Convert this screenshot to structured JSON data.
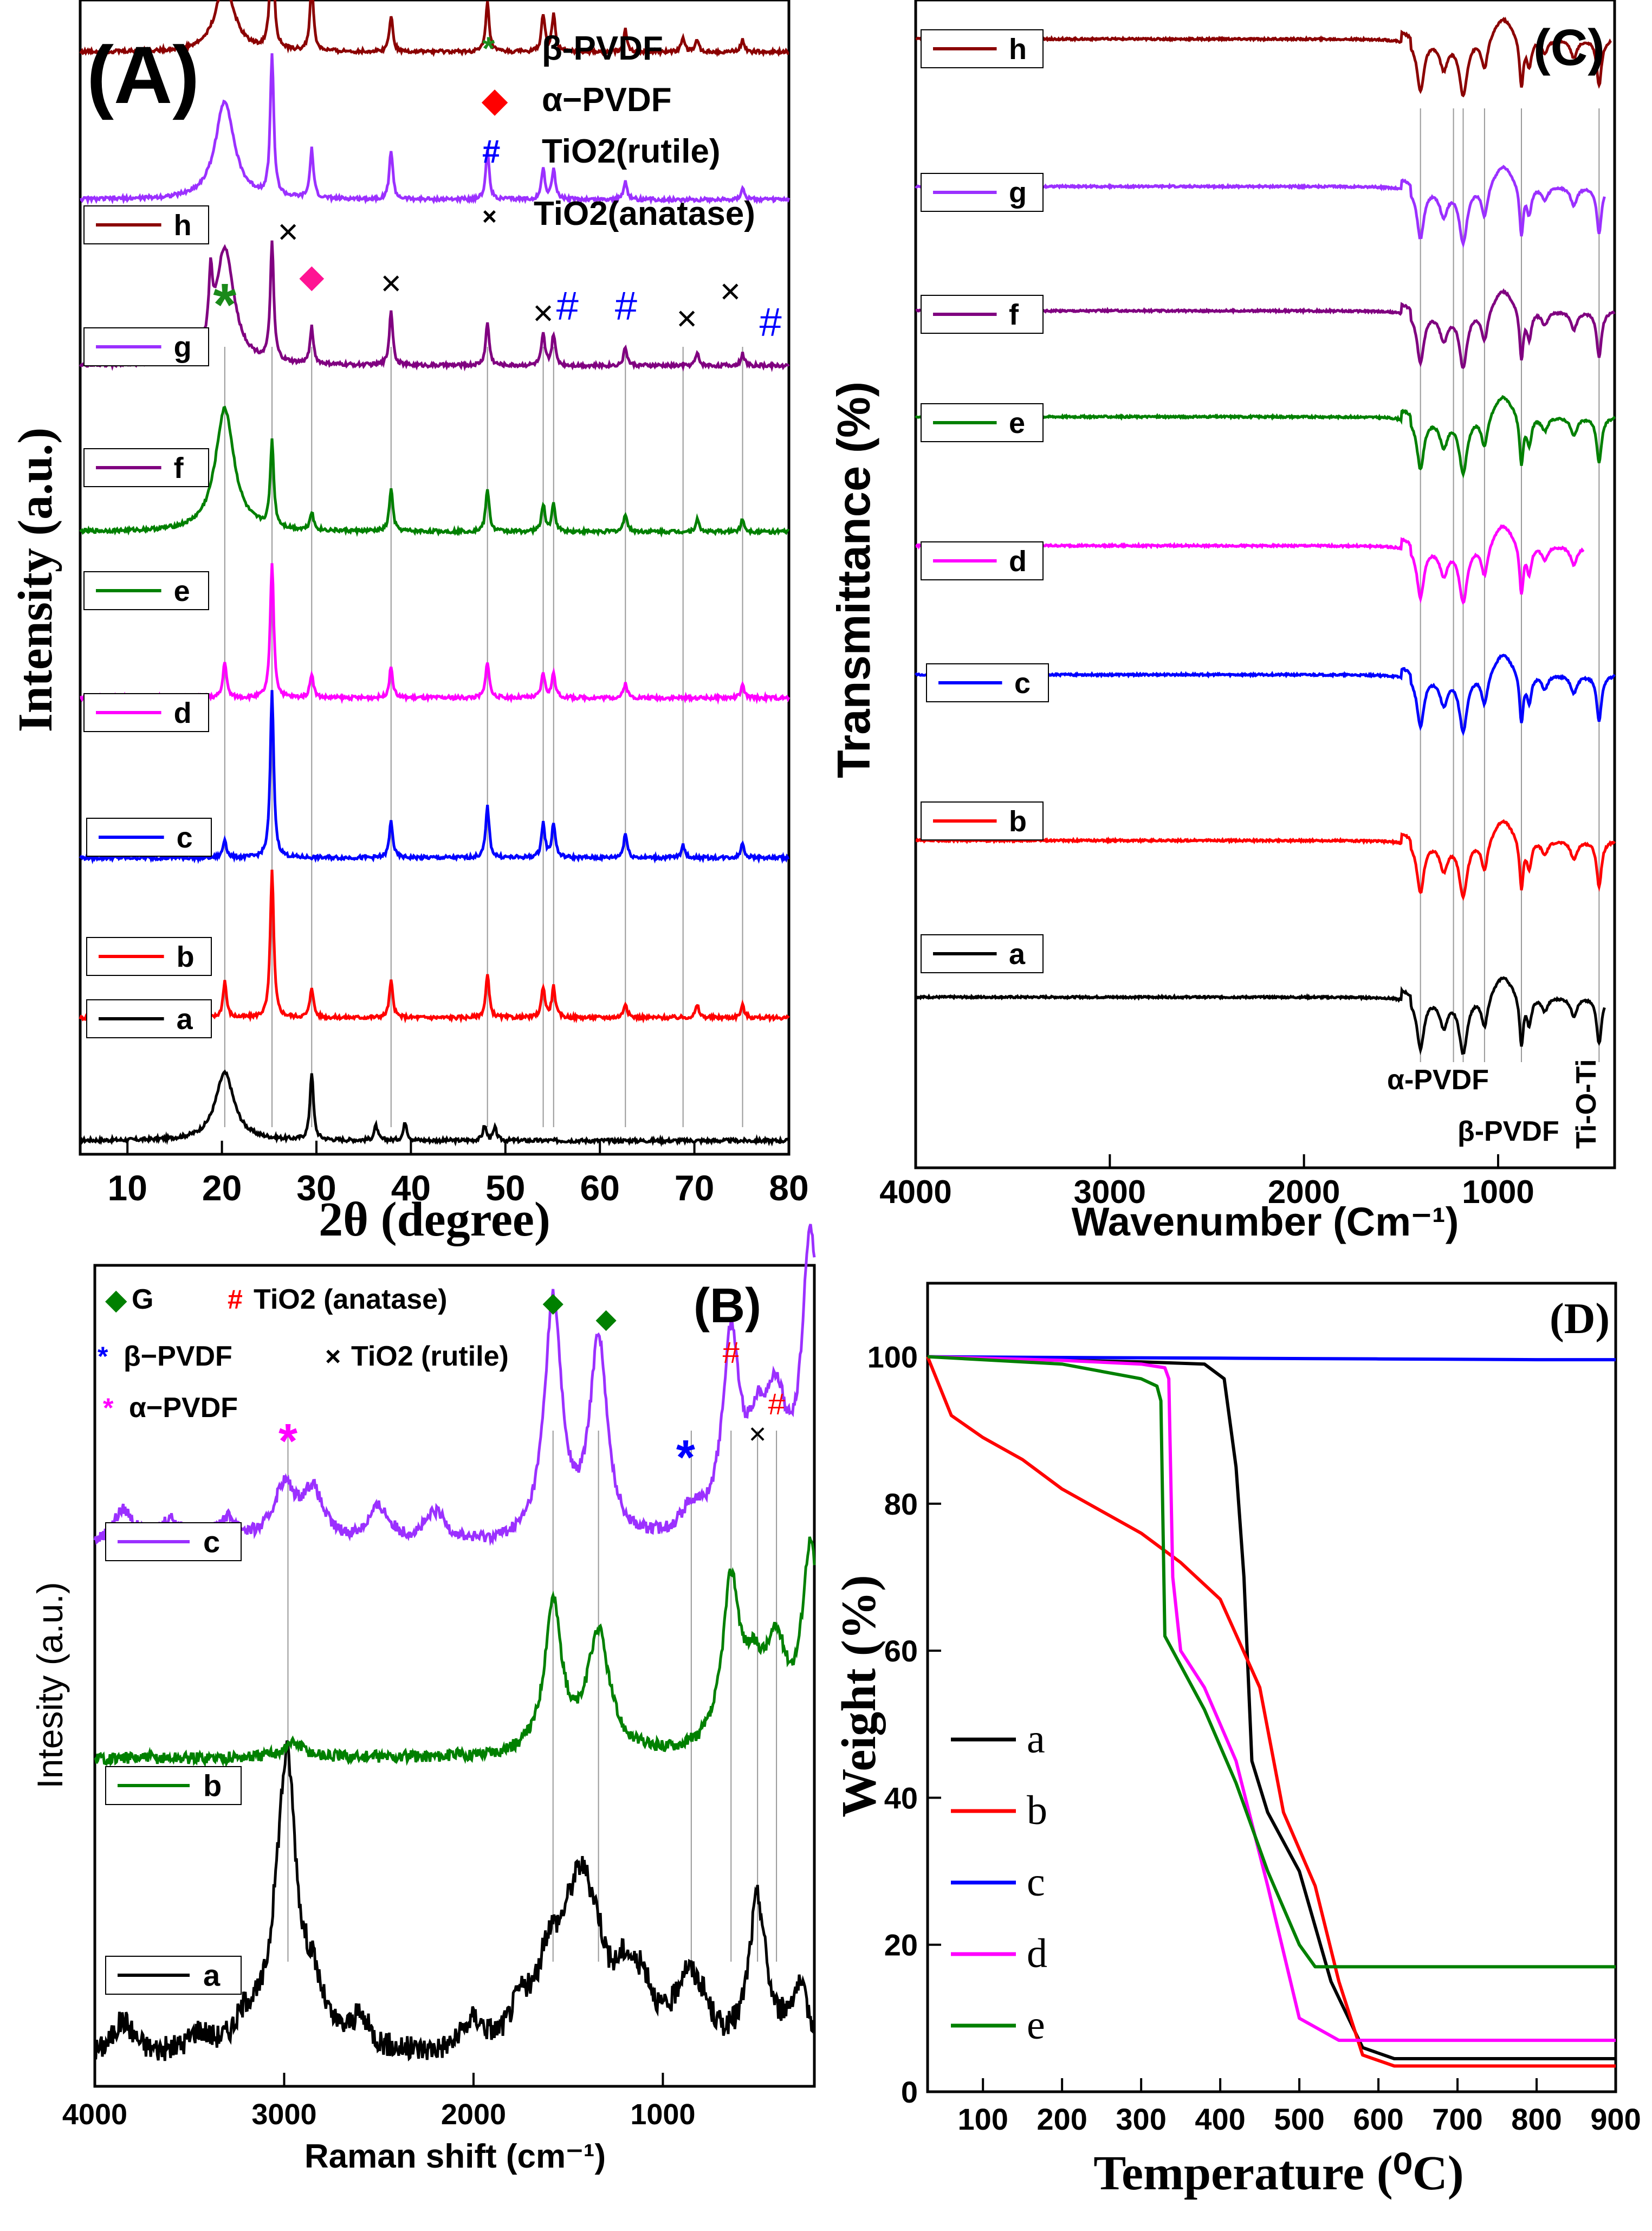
{
  "panels": {
    "A": {
      "label": "(A)",
      "xlabel": "2θ (degree)",
      "ylabel": "Intensity (a.u.)",
      "xlim": [
        5,
        80
      ],
      "xticks": [
        10,
        20,
        30,
        40,
        50,
        60,
        70,
        80
      ],
      "legend": [
        {
          "symbol": "*",
          "symbol_color": "#1a8a1a",
          "text": "β-PVDF"
        },
        {
          "symbol": "◆",
          "symbol_color": "#ff0000",
          "text": "α−PVDF"
        },
        {
          "symbol": "#",
          "symbol_color": "#0000ff",
          "text": "TiO2(rutile)"
        },
        {
          "symbol": "×",
          "symbol_color": "#000000",
          "text": "TiO2(anatase)"
        }
      ],
      "series": [
        {
          "name": "h",
          "color": "#8b0000"
        },
        {
          "name": "g",
          "color": "#9b30ff"
        },
        {
          "name": "f",
          "color": "#800080"
        },
        {
          "name": "e",
          "color": "#008000"
        },
        {
          "name": "d",
          "color": "#ff00ff"
        },
        {
          "name": "c",
          "color": "#0000ff"
        },
        {
          "name": "b",
          "color": "#ff0000"
        },
        {
          "name": "a",
          "color": "#000000"
        }
      ]
    },
    "B": {
      "label": "(B)",
      "xlabel": "Raman shift (cm⁻¹)",
      "ylabel": "Intesity (a.u.)",
      "xlim": [
        4000,
        200
      ],
      "xticks": [
        4000,
        3000,
        2000,
        1000
      ],
      "legend": [
        {
          "symbol": "◆",
          "symbol_color": "#008000",
          "text": "G"
        },
        {
          "symbol": "#",
          "symbol_color": "#ff0000",
          "text": "TiO2 (anatase)"
        },
        {
          "symbol": "*",
          "symbol_color": "#0000ff",
          "text": "β−PVDF"
        },
        {
          "symbol": "×",
          "symbol_color": "#000000",
          "text": "TiO2 (rutile)"
        },
        {
          "symbol": "*",
          "symbol_color": "#ff00ff",
          "text": "α−PVDF"
        }
      ],
      "series": [
        {
          "name": "c",
          "color": "#9b30ff"
        },
        {
          "name": "b",
          "color": "#008000"
        },
        {
          "name": "a",
          "color": "#000000"
        }
      ]
    },
    "C": {
      "label": "(C)",
      "xlabel": "Wavenumber (Cm⁻¹)",
      "ylabel": "Transmittance (%)",
      "xlim": [
        4000,
        400
      ],
      "xticks": [
        4000,
        3000,
        2000,
        1000
      ],
      "annotations": [
        "α-PVDF",
        "β-PVDF",
        "Ti-O-Ti"
      ],
      "series": [
        {
          "name": "h",
          "color": "#8b0000"
        },
        {
          "name": "g",
          "color": "#9b30ff"
        },
        {
          "name": "f",
          "color": "#800080"
        },
        {
          "name": "e",
          "color": "#008000"
        },
        {
          "name": "d",
          "color": "#ff00ff"
        },
        {
          "name": "c",
          "color": "#0000ff"
        },
        {
          "name": "b",
          "color": "#ff0000"
        },
        {
          "name": "a",
          "color": "#000000"
        }
      ]
    },
    "D": {
      "label": "(D)",
      "xlabel": "Temperature (⁰C)",
      "ylabel": "Weight (%)",
      "xlim": [
        30,
        900
      ],
      "ylim": [
        0,
        110
      ],
      "xticks": [
        100,
        200,
        300,
        400,
        500,
        600,
        700,
        800,
        900
      ],
      "yticks": [
        0,
        20,
        40,
        60,
        80,
        100
      ],
      "series": [
        {
          "name": "a",
          "color": "#000000"
        },
        {
          "name": "b",
          "color": "#ff0000"
        },
        {
          "name": "c",
          "color": "#0000ff"
        },
        {
          "name": "d",
          "color": "#ff00ff"
        },
        {
          "name": "e",
          "color": "#008000"
        }
      ]
    }
  },
  "chart_data": [
    {
      "panel": "A",
      "type": "line",
      "x_unit": "2θ (degree)",
      "series": [
        {
          "name": "a",
          "baseline": 0.0,
          "peaks": [
            {
              "x": 20.3,
              "h": 0.55
            },
            {
              "x": 29.5,
              "h": 0.55
            },
            {
              "x": 36.3,
              "h": 0.12
            },
            {
              "x": 39.4,
              "h": 0.15
            },
            {
              "x": 47.8,
              "h": 0.12
            },
            {
              "x": 48.9,
              "h": 0.1
            }
          ]
        },
        {
          "name": "b",
          "baseline": 1.0,
          "peaks": [
            {
              "x": 20.3,
              "h": 0.3
            },
            {
              "x": 25.3,
              "h": 1.2
            },
            {
              "x": 29.5,
              "h": 0.25
            },
            {
              "x": 37.9,
              "h": 0.3
            },
            {
              "x": 48.1,
              "h": 0.35
            },
            {
              "x": 54.0,
              "h": 0.25
            },
            {
              "x": 55.1,
              "h": 0.25
            },
            {
              "x": 62.7,
              "h": 0.12
            },
            {
              "x": 70.3,
              "h": 0.1
            },
            {
              "x": 75.1,
              "h": 0.1
            }
          ]
        },
        {
          "name": "c",
          "baseline": 2.3,
          "peaks": [
            {
              "x": 20.3,
              "h": 0.15
            },
            {
              "x": 25.3,
              "h": 1.35
            },
            {
              "x": 37.9,
              "h": 0.3
            },
            {
              "x": 48.1,
              "h": 0.42
            },
            {
              "x": 54.0,
              "h": 0.28
            },
            {
              "x": 55.1,
              "h": 0.28
            },
            {
              "x": 62.7,
              "h": 0.2
            },
            {
              "x": 68.8,
              "h": 0.1
            },
            {
              "x": 75.1,
              "h": 0.12
            }
          ]
        },
        {
          "name": "d",
          "baseline": 3.6,
          "peaks": [
            {
              "x": 20.3,
              "h": 0.3
            },
            {
              "x": 25.3,
              "h": 1.1
            },
            {
              "x": 29.5,
              "h": 0.2
            },
            {
              "x": 37.9,
              "h": 0.25
            },
            {
              "x": 48.1,
              "h": 0.3
            },
            {
              "x": 54.0,
              "h": 0.2
            },
            {
              "x": 55.1,
              "h": 0.2
            },
            {
              "x": 62.7,
              "h": 0.12
            },
            {
              "x": 75.1,
              "h": 0.1
            }
          ]
        },
        {
          "name": "e",
          "baseline": 4.95,
          "peaks": [
            {
              "x": 20.3,
              "h": 1.0
            },
            {
              "x": 25.3,
              "h": 0.7
            },
            {
              "x": 29.5,
              "h": 0.15
            },
            {
              "x": 37.9,
              "h": 0.35
            },
            {
              "x": 48.1,
              "h": 0.35
            },
            {
              "x": 54.0,
              "h": 0.22
            },
            {
              "x": 55.1,
              "h": 0.22
            },
            {
              "x": 62.7,
              "h": 0.15
            },
            {
              "x": 70.3,
              "h": 0.1
            },
            {
              "x": 75.1,
              "h": 0.1
            }
          ]
        },
        {
          "name": "f",
          "baseline": 6.3,
          "peaks": [
            {
              "x": 18.8,
              "h": 0.5
            },
            {
              "x": 20.3,
              "h": 0.95
            },
            {
              "x": 25.3,
              "h": 0.95
            },
            {
              "x": 29.5,
              "h": 0.3
            },
            {
              "x": 37.9,
              "h": 0.45
            },
            {
              "x": 48.1,
              "h": 0.35
            },
            {
              "x": 54.0,
              "h": 0.25
            },
            {
              "x": 55.1,
              "h": 0.25
            },
            {
              "x": 62.7,
              "h": 0.15
            },
            {
              "x": 70.3,
              "h": 0.1
            },
            {
              "x": 75.1,
              "h": 0.1
            }
          ]
        },
        {
          "name": "g",
          "baseline": 7.65,
          "peaks": [
            {
              "x": 20.3,
              "h": 0.8
            },
            {
              "x": 25.3,
              "h": 1.15
            },
            {
              "x": 29.5,
              "h": 0.4
            },
            {
              "x": 37.9,
              "h": 0.4
            },
            {
              "x": 48.1,
              "h": 0.4
            },
            {
              "x": 54.0,
              "h": 0.25
            },
            {
              "x": 55.1,
              "h": 0.25
            },
            {
              "x": 62.7,
              "h": 0.15
            },
            {
              "x": 75.1,
              "h": 0.1
            }
          ]
        },
        {
          "name": "h",
          "baseline": 8.85,
          "peaks": [
            {
              "x": 20.3,
              "h": 0.55
            },
            {
              "x": 25.3,
              "h": 1.15
            },
            {
              "x": 29.5,
              "h": 0.55
            },
            {
              "x": 37.9,
              "h": 0.3
            },
            {
              "x": 48.1,
              "h": 0.4
            },
            {
              "x": 54.0,
              "h": 0.3
            },
            {
              "x": 55.1,
              "h": 0.3
            },
            {
              "x": 62.7,
              "h": 0.18
            },
            {
              "x": 68.8,
              "h": 0.12
            },
            {
              "x": 70.3,
              "h": 0.1
            },
            {
              "x": 75.1,
              "h": 0.1
            }
          ]
        }
      ]
    },
    {
      "panel": "B",
      "type": "line",
      "x_unit": "Raman shift (cm-1)",
      "series": [
        {
          "name": "a",
          "baseline": 0.0,
          "peaks": [
            {
              "x": 3850,
              "h": 0.35
            },
            {
              "x": 3450,
              "h": 0.2
            },
            {
              "x": 3200,
              "h": 0.3
            },
            {
              "x": 3020,
              "h": 0.9
            },
            {
              "x": 2980,
              "h": 2.2
            },
            {
              "x": 2850,
              "h": 0.55
            },
            {
              "x": 2600,
              "h": 0.3
            },
            {
              "x": 2000,
              "h": 0.3
            },
            {
              "x": 1750,
              "h": 0.4
            },
            {
              "x": 1600,
              "h": 0.8
            },
            {
              "x": 1500,
              "h": 0.6
            },
            {
              "x": 1430,
              "h": 1.1
            },
            {
              "x": 1350,
              "h": 0.7
            },
            {
              "x": 1200,
              "h": 0.6
            },
            {
              "x": 1100,
              "h": 0.5
            },
            {
              "x": 880,
              "h": 0.6
            },
            {
              "x": 800,
              "h": 0.35
            },
            {
              "x": 500,
              "h": 1.5
            },
            {
              "x": 280,
              "h": 0.6
            }
          ]
        },
        {
          "name": "b",
          "baseline": 3.0,
          "peaks": [
            {
              "x": 2950,
              "h": 0.15
            },
            {
              "x": 1580,
              "h": 1.5
            },
            {
              "x": 1340,
              "h": 1.2
            },
            {
              "x": 640,
              "h": 1.6
            },
            {
              "x": 520,
              "h": 0.6
            },
            {
              "x": 400,
              "h": 0.9
            },
            {
              "x": 220,
              "h": 2.0
            }
          ]
        },
        {
          "name": "c",
          "baseline": 5.1,
          "peaks": [
            {
              "x": 3850,
              "h": 0.35
            },
            {
              "x": 3600,
              "h": 0.25
            },
            {
              "x": 3300,
              "h": 0.25
            },
            {
              "x": 3000,
              "h": 0.55
            },
            {
              "x": 2850,
              "h": 0.5
            },
            {
              "x": 2500,
              "h": 0.35
            },
            {
              "x": 2200,
              "h": 0.3
            },
            {
              "x": 1580,
              "h": 2.4
            },
            {
              "x": 1340,
              "h": 2.0
            },
            {
              "x": 850,
              "h": 0.25
            },
            {
              "x": 640,
              "h": 1.9
            },
            {
              "x": 500,
              "h": 0.8
            },
            {
              "x": 400,
              "h": 1.1
            },
            {
              "x": 220,
              "h": 3.0
            }
          ]
        }
      ]
    },
    {
      "panel": "C",
      "type": "line",
      "x_unit": "Wavenumber (cm-1)",
      "bands": [
        1400,
        1230,
        1180,
        1070,
        880,
        480
      ],
      "series": [
        {
          "name": "a",
          "baseline": 0.0,
          "end": 450
        },
        {
          "name": "b",
          "baseline": 1.7,
          "end": 400
        },
        {
          "name": "c",
          "baseline": 3.5,
          "end": 400
        },
        {
          "name": "d",
          "baseline": 4.9,
          "end": 560
        },
        {
          "name": "e",
          "baseline": 6.3,
          "end": 400
        },
        {
          "name": "f",
          "baseline": 7.45,
          "end": 400
        },
        {
          "name": "g",
          "baseline": 8.8,
          "end": 450
        },
        {
          "name": "h",
          "baseline": 10.4,
          "end": 420
        }
      ]
    },
    {
      "panel": "D",
      "type": "line",
      "x_unit": "Temperature (C)",
      "y_unit": "Weight (%)",
      "series": [
        {
          "name": "a",
          "x": [
            30,
            100,
            200,
            300,
            380,
            405,
            420,
            430,
            440,
            460,
            500,
            540,
            580,
            620,
            700,
            900
          ],
          "y": [
            100,
            99.8,
            99.5,
            99.3,
            99,
            97,
            85,
            70,
            45,
            38,
            30,
            15,
            6,
            4.5,
            4.5,
            4.5
          ]
        },
        {
          "name": "b",
          "x": [
            30,
            60,
            100,
            150,
            200,
            250,
            300,
            350,
            400,
            450,
            480,
            520,
            550,
            580,
            620,
            700,
            900
          ],
          "y": [
            100,
            92,
            89,
            86,
            82,
            79,
            76,
            72,
            67,
            55,
            38,
            28,
            15,
            5,
            3.5,
            3.5,
            3.5
          ]
        },
        {
          "name": "c",
          "x": [
            30,
            200,
            400,
            600,
            800,
            900
          ],
          "y": [
            100,
            99.9,
            99.8,
            99.7,
            99.6,
            99.6
          ]
        },
        {
          "name": "d",
          "x": [
            30,
            200,
            300,
            330,
            335,
            340,
            350,
            380,
            420,
            460,
            500,
            550,
            600,
            700,
            900
          ],
          "y": [
            100,
            99.5,
            99,
            98.5,
            97,
            70,
            60,
            55,
            45,
            28,
            10,
            7,
            7,
            7,
            7
          ]
        },
        {
          "name": "e",
          "x": [
            30,
            200,
            300,
            320,
            325,
            330,
            350,
            380,
            420,
            460,
            500,
            520,
            560,
            700,
            900
          ],
          "y": [
            100,
            99,
            97,
            96,
            94,
            62,
            58,
            52,
            42,
            30,
            20,
            17,
            17,
            17,
            17
          ]
        }
      ]
    }
  ]
}
